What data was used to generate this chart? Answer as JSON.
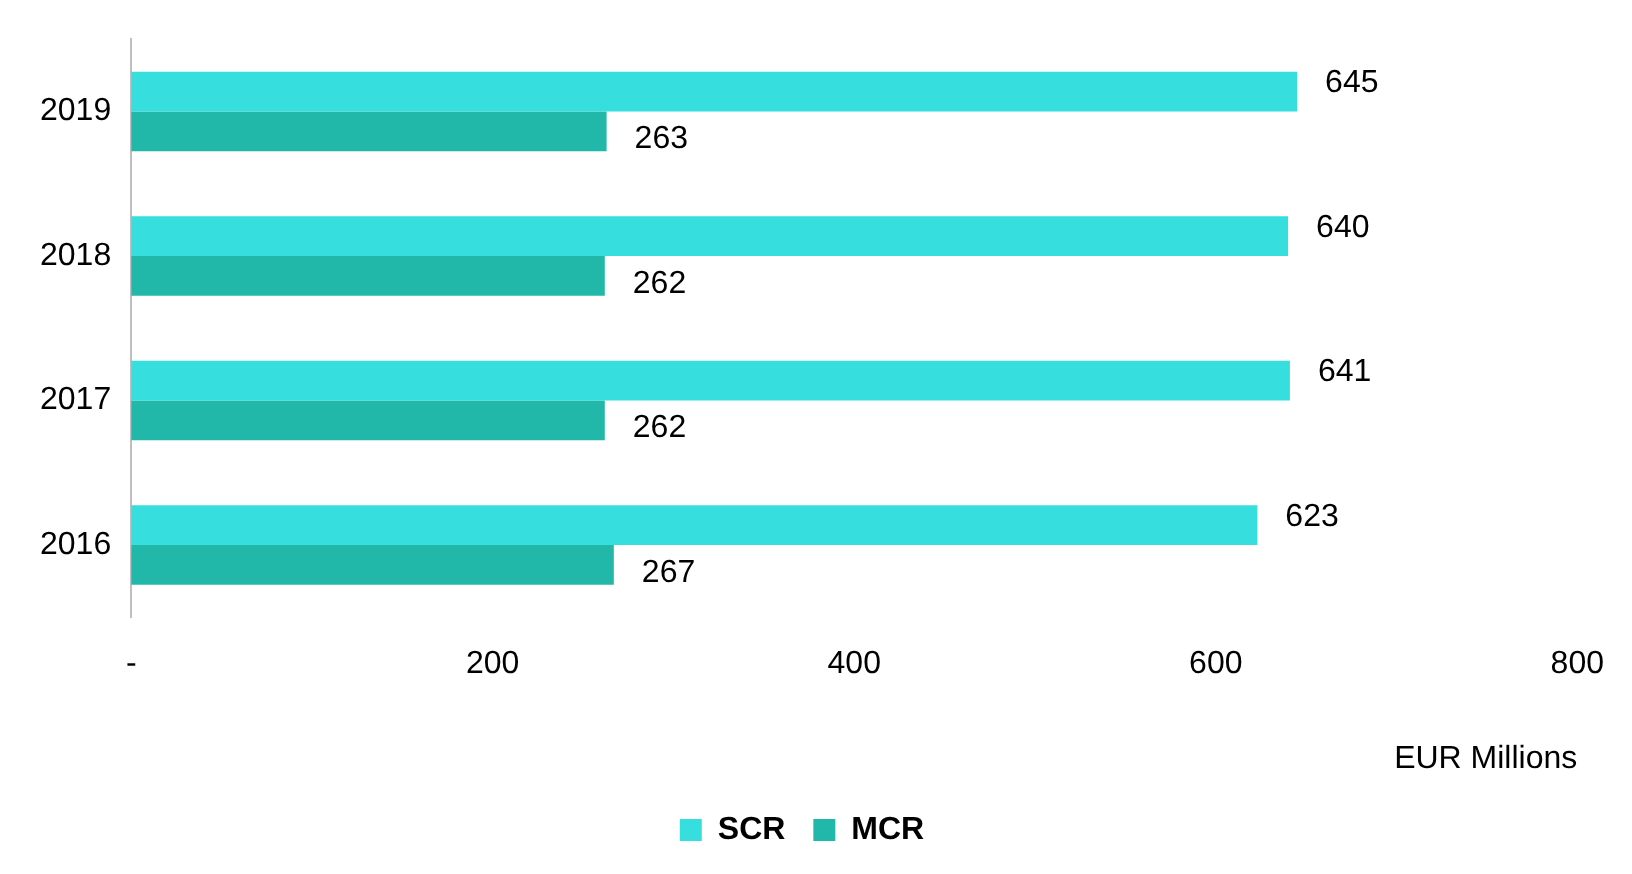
{
  "chart_data": {
    "type": "bar",
    "orientation": "horizontal",
    "categories": [
      "2019",
      "2018",
      "2017",
      "2016"
    ],
    "series": [
      {
        "name": "SCR",
        "color": "#36dede",
        "values": [
          645,
          640,
          641,
          623
        ]
      },
      {
        "name": "MCR",
        "color": "#22b8a9",
        "values": [
          263,
          262,
          262,
          267
        ]
      }
    ],
    "xlim": [
      0,
      800
    ],
    "xticks": [
      {
        "value": 0,
        "label": "-"
      },
      200,
      400,
      600,
      800
    ],
    "xlabel": "EUR Millions",
    "data_labels": true,
    "grid": false,
    "legend": "bottom"
  }
}
